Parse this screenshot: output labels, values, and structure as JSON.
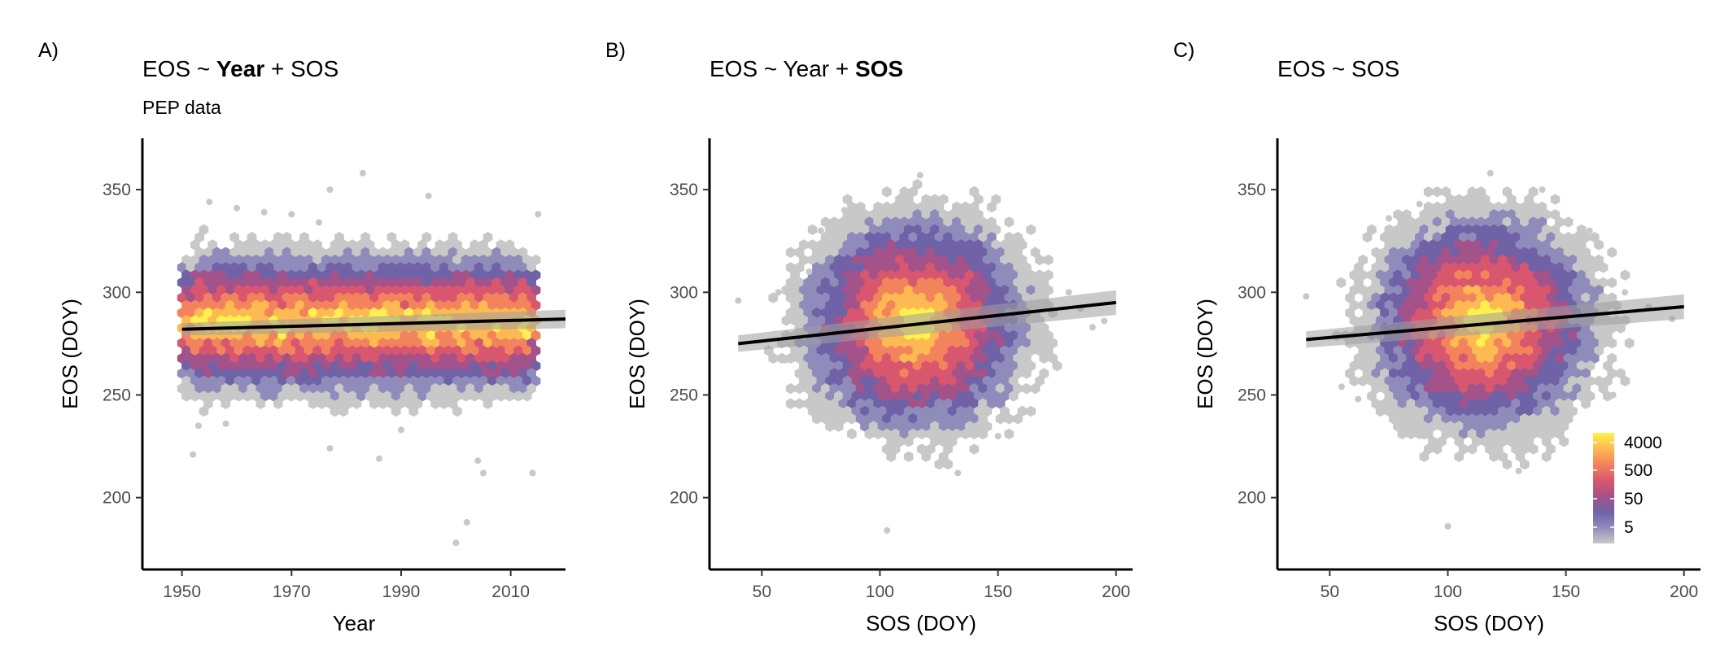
{
  "figure": {
    "source_note": "PEP data"
  },
  "colors": {
    "hex_ramp": [
      "#c8c8c8",
      "#8f8cbb",
      "#6f62a6",
      "#a4528a",
      "#d9576e",
      "#f3835c",
      "#fdb952",
      "#fff04f"
    ],
    "fit_line": "#000000",
    "ci_band": "#9e9e9e",
    "axis": "#000000"
  },
  "chart_data": [
    {
      "type": "hexbin",
      "panel_label": "A)",
      "title_parts": [
        {
          "text": "EOS ~ ",
          "bold": false
        },
        {
          "text": "Year",
          "bold": true
        },
        {
          "text": " + SOS",
          "bold": false
        }
      ],
      "subtitle": "PEP data",
      "xlabel": "Year",
      "ylabel": "EOS (DOY)",
      "xlim": [
        1945,
        2020
      ],
      "ylim": [
        165,
        375
      ],
      "xticks": [
        1950,
        1970,
        1990,
        2010
      ],
      "yticks": [
        200,
        250,
        300,
        350
      ],
      "density": {
        "x_min": 1950,
        "x_max": 2015,
        "mode": "uniform",
        "center_y": 285,
        "spread_y": 38
      },
      "outliers": [
        [
          1952,
          221
        ],
        [
          1955,
          344
        ],
        [
          1960,
          341
        ],
        [
          1965,
          339
        ],
        [
          1970,
          338
        ],
        [
          1977,
          224
        ],
        [
          1977,
          350
        ],
        [
          1983,
          358
        ],
        [
          1986,
          219
        ],
        [
          1995,
          347
        ],
        [
          2000,
          178
        ],
        [
          2002,
          188
        ],
        [
          2005,
          212
        ],
        [
          2014,
          212
        ],
        [
          2015,
          338
        ],
        [
          1953,
          235
        ],
        [
          1958,
          236
        ],
        [
          1975,
          334
        ],
        [
          1990,
          233
        ],
        [
          2004,
          218
        ]
      ],
      "fit": {
        "x": [
          1950,
          2020
        ],
        "y": [
          282,
          287
        ],
        "ci": 3
      }
    },
    {
      "type": "hexbin",
      "panel_label": "B)",
      "title_parts": [
        {
          "text": "EOS ~ Year + ",
          "bold": false
        },
        {
          "text": "SOS",
          "bold": true
        }
      ],
      "subtitle": "",
      "xlabel": "SOS (DOY)",
      "ylabel": "EOS (DOY)",
      "xlim": [
        33,
        207
      ],
      "ylim": [
        165,
        375
      ],
      "xticks": [
        50,
        100,
        150,
        200
      ],
      "yticks": [
        200,
        250,
        300,
        350
      ],
      "density": {
        "x_min": 40,
        "x_max": 195,
        "mode": "radial",
        "center_x": 115,
        "center_y": 285,
        "spread_x": 55,
        "spread_y": 60
      },
      "outliers": [
        [
          40,
          296
        ],
        [
          57,
          300
        ],
        [
          60,
          267
        ],
        [
          70,
          310
        ],
        [
          75,
          330
        ],
        [
          85,
          340
        ],
        [
          103,
          184
        ],
        [
          117,
          357
        ],
        [
          133,
          212
        ],
        [
          140,
          350
        ],
        [
          155,
          335
        ],
        [
          160,
          325
        ],
        [
          180,
          300
        ],
        [
          190,
          283
        ],
        [
          195,
          286
        ],
        [
          185,
          292
        ],
        [
          88,
          232
        ],
        [
          150,
          230
        ]
      ],
      "fit": {
        "x": [
          40,
          200
        ],
        "y": [
          275,
          295
        ],
        "ci": 4
      }
    },
    {
      "type": "hexbin",
      "panel_label": "C)",
      "title_parts": [
        {
          "text": "EOS ~ SOS",
          "bold": false
        }
      ],
      "subtitle": "",
      "xlabel": "SOS (DOY)",
      "ylabel": "EOS (DOY)",
      "xlim": [
        33,
        207
      ],
      "ylim": [
        165,
        375
      ],
      "xticks": [
        50,
        100,
        150,
        200
      ],
      "yticks": [
        200,
        250,
        300,
        350
      ],
      "density": {
        "x_min": 40,
        "x_max": 195,
        "mode": "radial",
        "center_x": 115,
        "center_y": 285,
        "spread_x": 55,
        "spread_y": 60
      },
      "outliers": [
        [
          40,
          298
        ],
        [
          55,
          254
        ],
        [
          62,
          248
        ],
        [
          75,
          336
        ],
        [
          88,
          343
        ],
        [
          100,
          186
        ],
        [
          118,
          358
        ],
        [
          130,
          213
        ],
        [
          140,
          350
        ],
        [
          160,
          330
        ],
        [
          175,
          300
        ],
        [
          185,
          293
        ],
        [
          195,
          287
        ],
        [
          170,
          250
        ],
        [
          90,
          230
        ]
      ],
      "fit": {
        "x": [
          40,
          200
        ],
        "y": [
          277,
          293
        ],
        "ci": 4
      },
      "legend": {
        "placement": "bottom-right",
        "labels": [
          "4000",
          "500",
          "50",
          "5"
        ]
      }
    }
  ]
}
